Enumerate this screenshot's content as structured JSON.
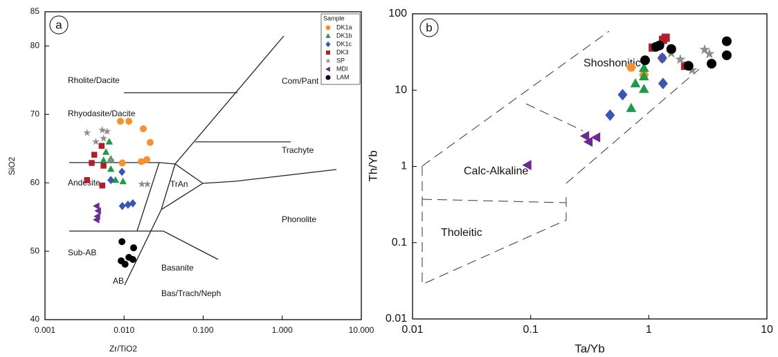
{
  "chart_data": [
    {
      "type": "scatter",
      "panel_label": "a",
      "x_label": "Zr/TiO2",
      "y_label": "SiO2",
      "x_scale": "log",
      "xlim": [
        0.001,
        10
      ],
      "xticks": [
        {
          "value": 0.001,
          "label": "0.001"
        },
        {
          "value": 0.01,
          "label": "0.010"
        },
        {
          "value": 0.1,
          "label": "0.100"
        },
        {
          "value": 1,
          "label": "1.000"
        },
        {
          "value": 10,
          "label": "10.000"
        }
      ],
      "ylim": [
        40,
        85
      ],
      "yticks": [
        40,
        50,
        60,
        70,
        80,
        85
      ],
      "legend": "upper right",
      "legend_title": "Sample",
      "annotations": [
        "Rholite/Dacite",
        "Rhyodasite/Dacite",
        "Andesite",
        "TrAn",
        "Com/Pant",
        "Trachyte",
        "Phonolite",
        "Sub-AB",
        "AB",
        "Basanite",
        "Bas/Trach/Neph"
      ],
      "series": [
        {
          "name": "DK1a",
          "color": "#f5922f",
          "marker": "circle",
          "x": [
            0.009,
            0.0115,
            0.0175,
            0.0214,
            0.0194,
            0.0165,
            0.0095
          ],
          "values": [
            69.0,
            69.0,
            67.9,
            65.9,
            63.4,
            63.1,
            62.9
          ]
        },
        {
          "name": "DK1b",
          "color": "#1e9a48",
          "marker": "triangle",
          "x": [
            0.0065,
            0.0059,
            0.0068,
            0.0068,
            0.0078,
            0.0097,
            0.0055
          ],
          "values": [
            66.0,
            64.5,
            63.5,
            62.0,
            60.4,
            60.2,
            63.3
          ]
        },
        {
          "name": "DK1c",
          "color": "#3a55b4",
          "marker": "diamond",
          "x": [
            0.0094,
            0.0068,
            0.0095,
            0.0112,
            0.0129
          ],
          "values": [
            61.6,
            60.4,
            56.6,
            56.8,
            57.0
          ]
        },
        {
          "name": "DK3",
          "color": "#b0202a",
          "marker": "square",
          "x": [
            0.0052,
            0.0042,
            0.0039,
            0.0055,
            0.0053,
            0.0034
          ],
          "values": [
            65.4,
            64.1,
            62.9,
            62.5,
            59.6,
            60.4
          ]
        },
        {
          "name": "SP",
          "color": "#8c8c8c",
          "marker": "star",
          "x": [
            0.0034,
            0.0044,
            0.0053,
            0.0061,
            0.0055,
            0.0068,
            0.0168,
            0.0197
          ],
          "values": [
            67.3,
            66.0,
            67.7,
            67.5,
            66.5,
            63.3,
            59.8,
            59.8
          ]
        },
        {
          "name": "MDI",
          "color": "#6a2a8e",
          "marker": "left",
          "x": [
            0.0045,
            0.0047,
            0.0046,
            0.0045
          ],
          "values": [
            56.6,
            55.9,
            55.1,
            54.6
          ]
        },
        {
          "name": "LAM",
          "color": "#000000",
          "marker": "circle",
          "x": [
            0.0094,
            0.0132,
            0.0092,
            0.0103,
            0.0129,
            0.0115
          ],
          "values": [
            51.4,
            50.5,
            48.6,
            48.1,
            48.8,
            49.1
          ]
        }
      ]
    },
    {
      "type": "scatter",
      "panel_label": "b",
      "x_label": "Ta/Yb",
      "y_label": "Th/Yb",
      "x_scale": "log",
      "y_scale": "log",
      "xlim": [
        0.01,
        10
      ],
      "xticks": [
        0.01,
        0.1,
        1,
        10
      ],
      "ylim": [
        0.01,
        100
      ],
      "yticks": [
        0.01,
        0.1,
        1,
        10,
        100
      ],
      "annotations": [
        "Shoshonitic",
        "Calc-Alkaline",
        "Tholeitic"
      ],
      "series": [
        {
          "color": "#f5922f",
          "marker": "hexagon",
          "x": [
            0.71,
            0.91,
            1.3
          ],
          "values": [
            19.9,
            15.8,
            26.3
          ]
        },
        {
          "color": "#1e9a48",
          "marker": "triangle",
          "x": [
            0.91,
            0.91,
            0.77,
            0.71,
            0.91
          ],
          "values": [
            19.5,
            15.1,
            12.2,
            5.8,
            10.3
          ]
        },
        {
          "color": "#3a55b4",
          "marker": "diamond",
          "x": [
            0.47,
            0.6,
            1.32,
            1.3
          ],
          "values": [
            4.7,
            8.7,
            12.2,
            26.3
          ]
        },
        {
          "color": "#b0202a",
          "marker": "square",
          "x": [
            1.08,
            1.32,
            1.39,
            2.03
          ],
          "values": [
            36.1,
            45.6,
            48.6,
            20.8
          ]
        },
        {
          "color": "#8c8c8c",
          "marker": "star",
          "x": [
            1.55,
            1.85,
            2.33,
            2.97,
            3.26
          ],
          "values": [
            30.5,
            25.2,
            18.3,
            33.9,
            29.8
          ]
        },
        {
          "color": "#6a2a8e",
          "marker": "left",
          "x": [
            0.094,
            0.29,
            0.31,
            0.36
          ],
          "values": [
            1.04,
            2.5,
            2.1,
            2.4
          ]
        },
        {
          "color": "#000000",
          "marker": "circle",
          "x": [
            0.93,
            1.15,
            1.23,
            1.55,
            2.17,
            3.4,
            4.57,
            4.57
          ],
          "values": [
            24.6,
            36.9,
            38.5,
            34.6,
            20.8,
            22.2,
            43.7,
            28.6
          ]
        }
      ]
    }
  ]
}
